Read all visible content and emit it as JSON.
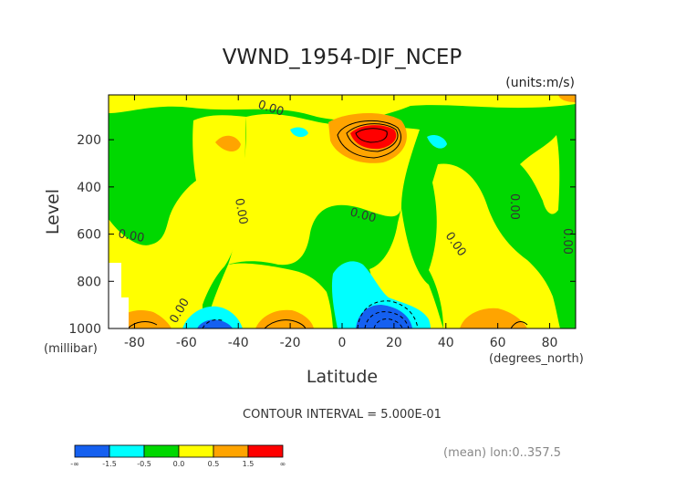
{
  "chart_data": {
    "type": "heatmap",
    "title": "VWND_1954-DJF_NCEP",
    "units_label": "(units:m/s)",
    "xlabel": "Latitude",
    "ylabel": "Level",
    "x_units": "(degrees_north)",
    "y_units": "(millibar)",
    "x_ticks": [
      -80,
      -60,
      -40,
      -20,
      0,
      20,
      40,
      60,
      80
    ],
    "x_tick_labels": [
      "-80",
      "-60",
      "-40",
      "-20",
      "0",
      "20",
      "40",
      "60",
      "80"
    ],
    "y_ticks": [
      200,
      400,
      600,
      800,
      1000
    ],
    "y_tick_labels": [
      "200",
      "400",
      "600",
      "800",
      "1000"
    ],
    "xlim": [
      -90,
      90
    ],
    "ylim": [
      1000,
      10
    ],
    "contour_interval_text": "CONTOUR INTERVAL = 5.000E-01",
    "zero_label": "0.00",
    "footer_text": "(mean) lon:0..357.5",
    "colorbar": {
      "levels": [
        "-∞",
        "-1.5",
        "-0.5",
        "0.0",
        "0.5",
        "1.5",
        "∞"
      ],
      "colors": [
        "#1560f0",
        "#00ffff",
        "#00d800",
        "#ffff00",
        "#ffa400",
        "#ff0000"
      ]
    },
    "features": [
      {
        "name": "upper-trop-max",
        "lat": 12,
        "lev": 150,
        "value": 2.3
      },
      {
        "name": "tropical-low-level-min",
        "lat": 12,
        "lev": 950,
        "value": -2.0
      },
      {
        "name": "southern-low-level-min",
        "lat": -52,
        "lev": 990,
        "value": -1.6
      }
    ]
  }
}
